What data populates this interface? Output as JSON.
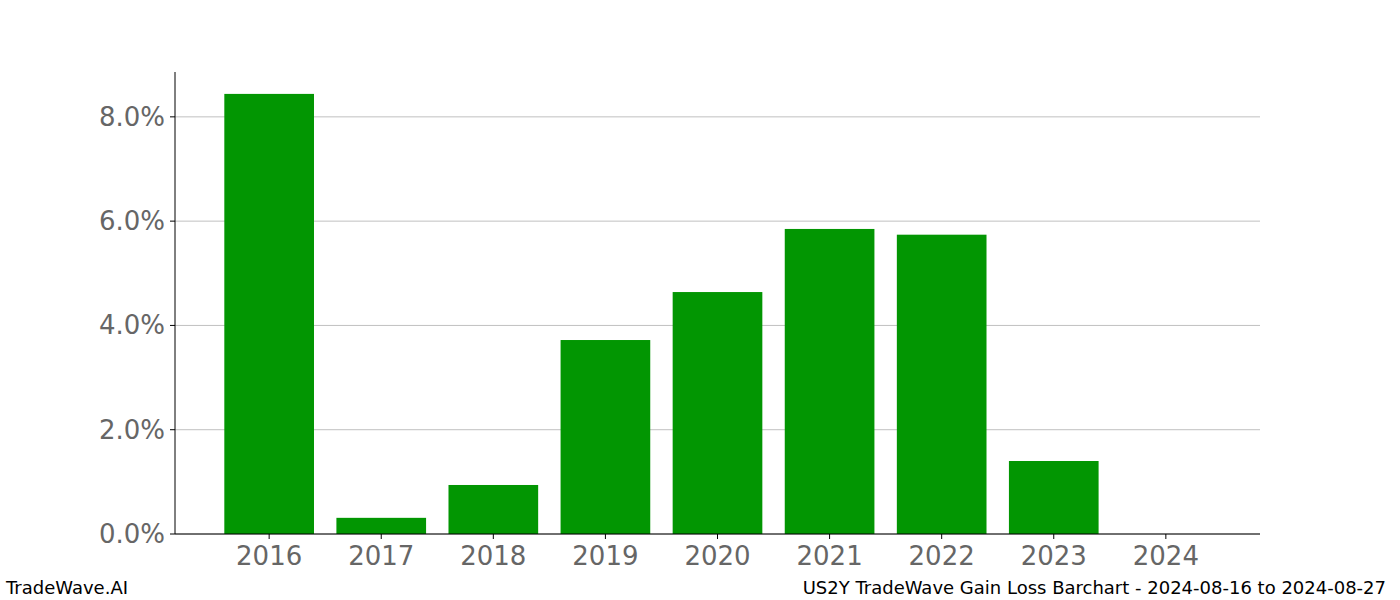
{
  "chart_data": {
    "type": "bar",
    "title": "US2Y TradeWave Gain Loss Barchart - 2024-08-16 to 2024-08-27",
    "annotations": [
      "TradeWave.AI"
    ],
    "categories": [
      "2016",
      "2017",
      "2018",
      "2019",
      "2020",
      "2021",
      "2022",
      "2023",
      "2024"
    ],
    "values": [
      8.44,
      0.31,
      0.94,
      3.72,
      4.64,
      5.85,
      5.74,
      1.4,
      0
    ],
    "color": "#029602",
    "ylim": [
      0,
      8.86
    ],
    "yticks": [
      {
        "value": 0,
        "label": "0.0%"
      },
      {
        "value": 2,
        "label": "2.0%"
      },
      {
        "value": 4,
        "label": "4.0%"
      },
      {
        "value": 6,
        "label": "6.0%"
      },
      {
        "value": 8,
        "label": "8.0%"
      }
    ],
    "grid": true
  }
}
